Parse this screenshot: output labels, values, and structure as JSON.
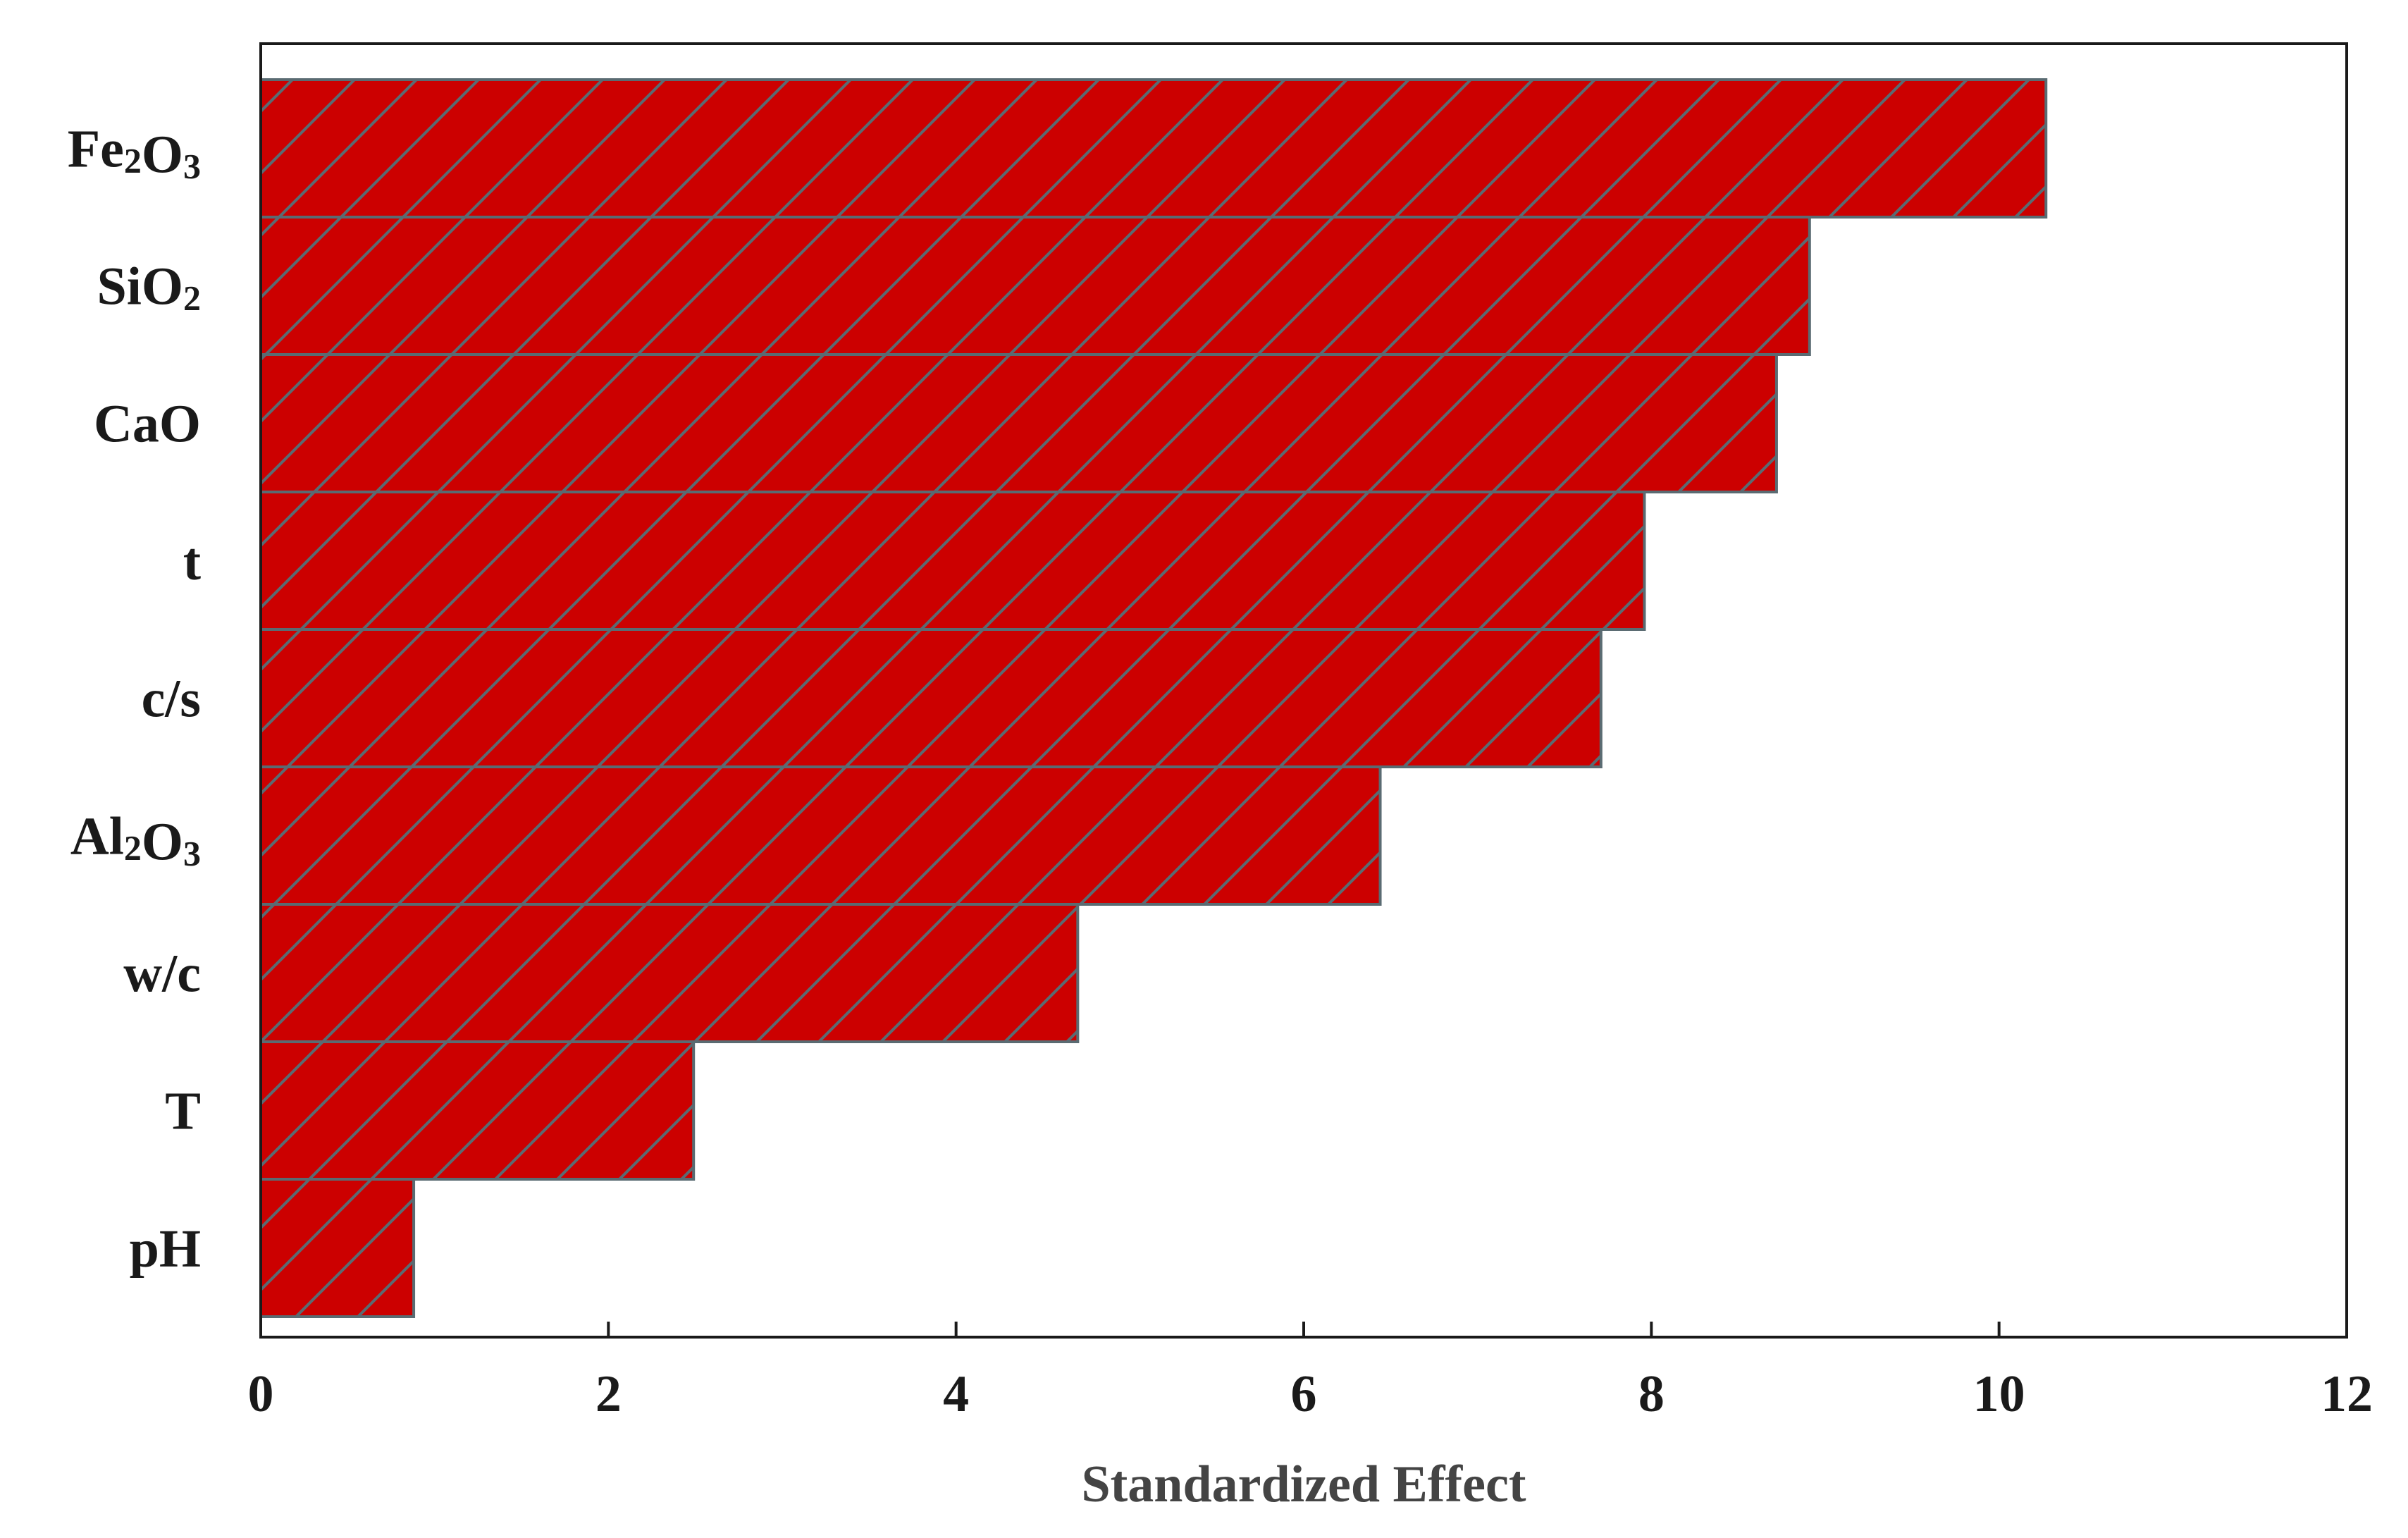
{
  "chart_data": {
    "type": "bar",
    "orientation": "horizontal",
    "categories": [
      {
        "text": "Fe2O3",
        "parts": [
          {
            "t": "Fe",
            "sub": false
          },
          {
            "t": "2",
            "sub": true
          },
          {
            "t": "O",
            "sub": false
          },
          {
            "t": "3",
            "sub": true
          }
        ]
      },
      {
        "text": "SiO2",
        "parts": [
          {
            "t": "SiO",
            "sub": false
          },
          {
            "t": "2",
            "sub": true
          }
        ]
      },
      {
        "text": "CaO",
        "parts": [
          {
            "t": "CaO",
            "sub": false
          }
        ]
      },
      {
        "text": "t",
        "parts": [
          {
            "t": "t",
            "sub": false
          }
        ]
      },
      {
        "text": "c/s",
        "parts": [
          {
            "t": "c/s",
            "sub": false
          }
        ]
      },
      {
        "text": "Al2O3",
        "parts": [
          {
            "t": "Al",
            "sub": false
          },
          {
            "t": "2",
            "sub": true
          },
          {
            "t": "O",
            "sub": false
          },
          {
            "t": "3",
            "sub": true
          }
        ]
      },
      {
        "text": "w/c",
        "parts": [
          {
            "t": "w/c",
            "sub": false
          }
        ]
      },
      {
        "text": "T",
        "parts": [
          {
            "t": "T",
            "sub": false
          }
        ]
      },
      {
        "text": "pH",
        "parts": [
          {
            "t": "pH",
            "sub": false
          }
        ]
      }
    ],
    "values": [
      10.27,
      8.91,
      8.72,
      7.96,
      7.71,
      6.44,
      4.7,
      2.49,
      0.88
    ],
    "xlabel": "Standardized Effect",
    "ylabel": "",
    "title": "",
    "xlim": [
      0,
      12
    ],
    "xticks": [
      0,
      2,
      4,
      6,
      8,
      10,
      12
    ],
    "grid": false,
    "legend": "none",
    "bar_color": "#cc0000",
    "hatch_color": "#5a6b72",
    "hatch": "diagonal"
  }
}
